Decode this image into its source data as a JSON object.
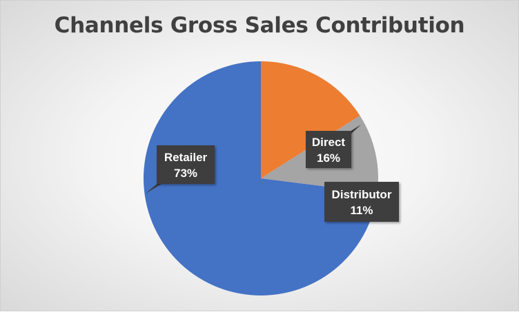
{
  "chart_data": {
    "type": "pie",
    "title": "Channels Gross Sales Contribution",
    "start_angle_deg": 90,
    "direction": "clockwise",
    "slices": [
      {
        "label": "Direct",
        "value": 16,
        "value_label": "16%",
        "color": "#ED7D31"
      },
      {
        "label": "Distributor",
        "value": 11,
        "value_label": "11%",
        "color": "#A5A5A5"
      },
      {
        "label": "Retailer",
        "value": 73,
        "value_label": "73%",
        "color": "#4472C4"
      }
    ]
  }
}
